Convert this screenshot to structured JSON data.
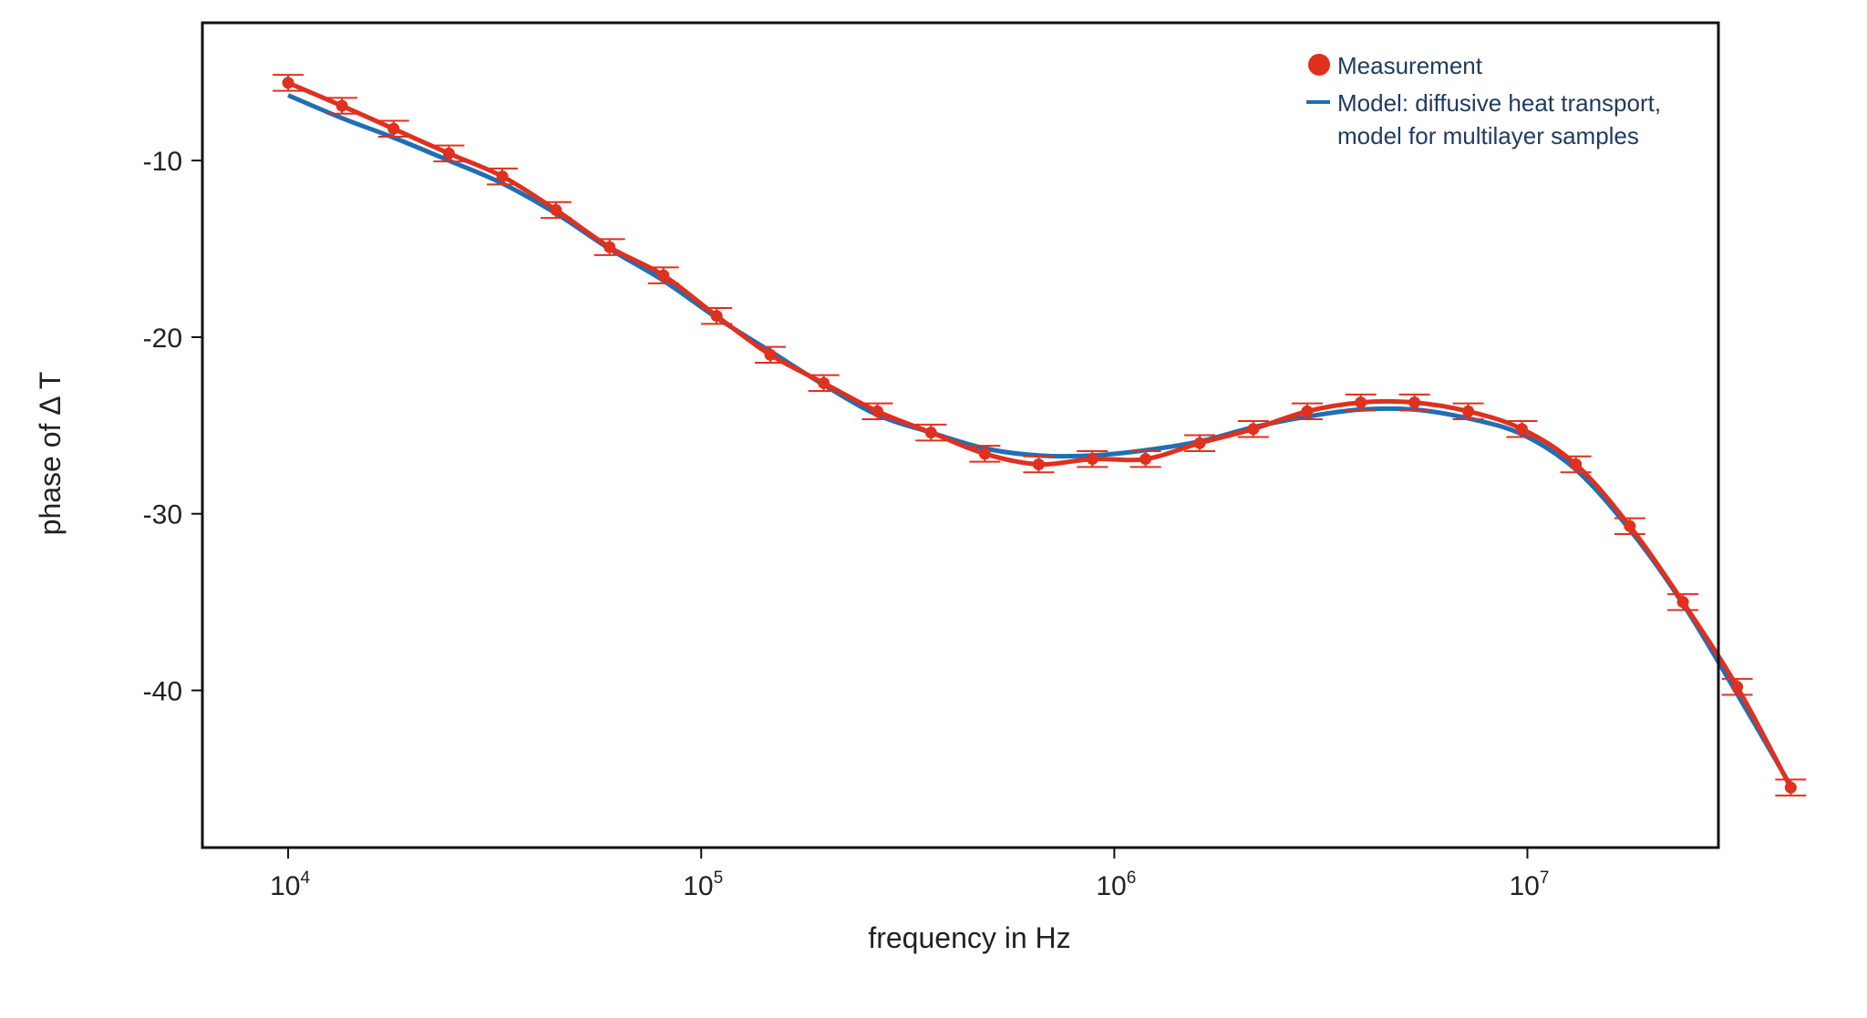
{
  "chart_data": {
    "type": "scatter",
    "title": "",
    "xlabel": "frequency in Hz",
    "ylabel": "phase of Δ T",
    "x_scale": "log",
    "xlim": [
      6200,
      29000000
    ],
    "ylim": [
      -48.9,
      -2.2
    ],
    "x_ticks": [
      {
        "value": 10000,
        "base": "10",
        "exp": "4"
      },
      {
        "value": 100000,
        "base": "10",
        "exp": "5"
      },
      {
        "value": 1000000,
        "base": "10",
        "exp": "6"
      },
      {
        "value": 10000000,
        "base": "10",
        "exp": "7"
      }
    ],
    "y_ticks": [
      {
        "value": -10,
        "label": "-10"
      },
      {
        "value": -20,
        "label": "-20"
      },
      {
        "value": -30,
        "label": "-30"
      },
      {
        "value": -40,
        "label": "-40"
      }
    ],
    "grid": false,
    "legend_position": "top-right",
    "legend": {
      "measurement": "Measurement",
      "model_line1": "Model: diffusive heat transport,",
      "model_line2": "model for multilayer samples"
    },
    "colors": {
      "measurement": "#e0301e",
      "model": "#1f6fb4",
      "legend_text": "#1f3a5f",
      "frame": "#111111"
    },
    "series": [
      {
        "name": "Measurement",
        "error": 0.45,
        "points": [
          [
            10000,
            -5.6
          ],
          [
            13500,
            -6.9
          ],
          [
            18000,
            -8.2
          ],
          [
            24500,
            -9.6
          ],
          [
            33000,
            -10.9
          ],
          [
            44500,
            -12.8
          ],
          [
            60000,
            -14.9
          ],
          [
            81000,
            -16.5
          ],
          [
            109000,
            -18.8
          ],
          [
            147000,
            -21.0
          ],
          [
            198000,
            -22.6
          ],
          [
            267000,
            -24.2
          ],
          [
            360000,
            -25.4
          ],
          [
            486000,
            -26.6
          ],
          [
            656000,
            -27.2
          ],
          [
            885000,
            -26.9
          ],
          [
            1190000,
            -26.9
          ],
          [
            1610000,
            -26.0
          ],
          [
            2170000,
            -25.2
          ],
          [
            2930000,
            -24.2
          ],
          [
            3950000,
            -23.7
          ],
          [
            5330000,
            -23.7
          ],
          [
            7190000,
            -24.2
          ],
          [
            9700000,
            -25.2
          ],
          [
            13100000,
            -27.2
          ],
          [
            17700000,
            -30.7
          ],
          [
            23800000,
            -35.0
          ],
          [
            32200000,
            -39.8
          ],
          [
            43400000,
            -45.5
          ]
        ]
      },
      {
        "name": "Model: diffusive heat transport, model for multilayer samples",
        "points": [
          [
            10000,
            -6.3
          ],
          [
            13500,
            -7.6
          ],
          [
            18000,
            -8.7
          ],
          [
            24500,
            -10.0
          ],
          [
            33000,
            -11.3
          ],
          [
            44500,
            -13.0
          ],
          [
            60000,
            -15.0
          ],
          [
            81000,
            -16.8
          ],
          [
            109000,
            -18.9
          ],
          [
            147000,
            -20.8
          ],
          [
            198000,
            -22.7
          ],
          [
            267000,
            -24.4
          ],
          [
            360000,
            -25.4
          ],
          [
            486000,
            -26.3
          ],
          [
            656000,
            -26.7
          ],
          [
            885000,
            -26.7
          ],
          [
            1190000,
            -26.4
          ],
          [
            1610000,
            -25.9
          ],
          [
            2170000,
            -25.1
          ],
          [
            2930000,
            -24.5
          ],
          [
            3950000,
            -24.1
          ],
          [
            5330000,
            -24.1
          ],
          [
            7190000,
            -24.6
          ],
          [
            9700000,
            -25.5
          ],
          [
            13100000,
            -27.5
          ],
          [
            17700000,
            -30.9
          ],
          [
            23800000,
            -35.1
          ],
          [
            32200000,
            -40.2
          ],
          [
            43400000,
            -45.4
          ]
        ]
      }
    ]
  }
}
